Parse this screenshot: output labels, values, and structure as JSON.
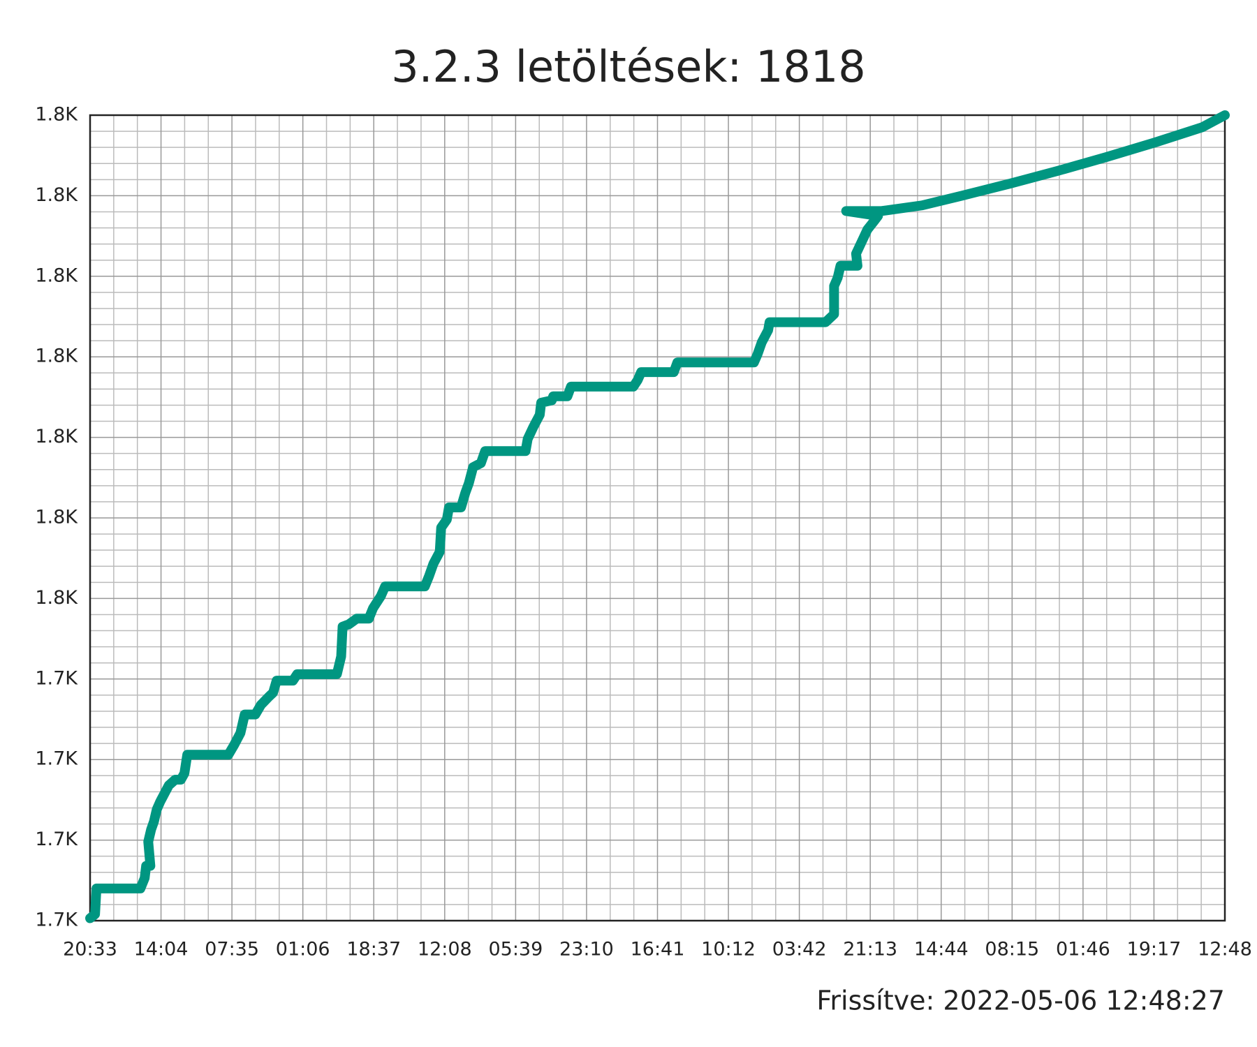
{
  "chart_data": {
    "type": "line",
    "title": "3.2.3 letöltések: 1818",
    "annotation": "Frissítve: 2022-05-06 12:48:27",
    "xlim": [
      0,
      16
    ],
    "xticks": [
      {
        "value": 0,
        "label": "20:33"
      },
      {
        "value": 1,
        "label": "14:04"
      },
      {
        "value": 2,
        "label": "07:35"
      },
      {
        "value": 3,
        "label": "01:06"
      },
      {
        "value": 4,
        "label": "18:37"
      },
      {
        "value": 5,
        "label": "12:08"
      },
      {
        "value": 6,
        "label": "05:39"
      },
      {
        "value": 7,
        "label": "23:10"
      },
      {
        "value": 8,
        "label": "16:41"
      },
      {
        "value": 9,
        "label": "10:12"
      },
      {
        "value": 10,
        "label": "03:42"
      },
      {
        "value": 11,
        "label": "21:13"
      },
      {
        "value": 12,
        "label": "14:44"
      },
      {
        "value": 13,
        "label": "08:15"
      },
      {
        "value": 14,
        "label": "01:46"
      },
      {
        "value": 15,
        "label": "19:17"
      },
      {
        "value": 16,
        "label": "12:48"
      }
    ],
    "ylim": [
      1718,
      1818
    ],
    "yticks": [
      {
        "value": 1718,
        "label": "1.7K"
      },
      {
        "value": 1728,
        "label": "1.7K"
      },
      {
        "value": 1738,
        "label": "1.7K"
      },
      {
        "value": 1748,
        "label": "1.7K"
      },
      {
        "value": 1758,
        "label": "1.8K"
      },
      {
        "value": 1768,
        "label": "1.8K"
      },
      {
        "value": 1778,
        "label": "1.8K"
      },
      {
        "value": 1788,
        "label": "1.8K"
      },
      {
        "value": 1798,
        "label": "1.8K"
      },
      {
        "value": 1808,
        "label": "1.8K"
      },
      {
        "value": 1818,
        "label": "1.8K"
      }
    ],
    "grid": true,
    "series": [
      {
        "color": "#009681",
        "x": [
          0,
          0.07,
          0.09,
          0.71,
          0.77,
          0.79,
          0.85,
          0.82,
          0.86,
          0.9,
          0.94,
          0.99,
          1.05,
          1.11,
          1.2,
          1.28,
          1.33,
          1.37,
          1.95,
          2.03,
          2.12,
          2.18,
          2.33,
          2.41,
          2.52,
          2.58,
          2.63,
          2.86,
          2.92,
          3.48,
          3.54,
          3.56,
          3.65,
          3.76,
          3.93,
          3.99,
          4.1,
          4.16,
          4.72,
          4.78,
          4.84,
          4.93,
          4.95,
          5.03,
          5.06,
          5.23,
          5.29,
          5.34,
          5.4,
          5.51,
          5.57,
          6.14,
          6.17,
          6.25,
          6.34,
          6.36,
          6.51,
          6.53,
          6.73,
          6.78,
          7.66,
          7.72,
          7.77,
          8.23,
          8.28,
          9.36,
          9.41,
          9.47,
          9.56,
          9.58,
          10.37,
          10.49,
          10.49,
          10.54,
          10.58,
          10.82,
          10.8,
          10.88,
          10.96,
          11.05,
          11.11,
          10.66,
          11.16,
          11.73,
          12.29,
          12.97,
          13.65,
          14.33,
          15.01,
          15.68,
          16
        ],
        "values": [
          1718.3,
          1718.8,
          1722,
          1722,
          1723.3,
          1724.8,
          1724.8,
          1727.8,
          1729.3,
          1730.3,
          1731.8,
          1732.8,
          1733.8,
          1734.8,
          1735.5,
          1735.5,
          1736.3,
          1738.6,
          1738.6,
          1739.8,
          1741.3,
          1743.6,
          1743.6,
          1744.8,
          1745.8,
          1746.3,
          1747.8,
          1747.8,
          1748.6,
          1748.6,
          1750.8,
          1754.5,
          1754.8,
          1755.5,
          1755.5,
          1756.8,
          1758.3,
          1759.5,
          1759.5,
          1760.8,
          1762.3,
          1763.8,
          1766.8,
          1767.8,
          1769.3,
          1769.3,
          1771.1,
          1772.3,
          1774.3,
          1774.8,
          1776.3,
          1776.3,
          1777.8,
          1779.3,
          1780.8,
          1782.3,
          1782.6,
          1783.1,
          1783.1,
          1784.3,
          1784.3,
          1785.1,
          1786.1,
          1786.1,
          1787.3,
          1787.3,
          1788.3,
          1789.8,
          1791.3,
          1792.3,
          1792.3,
          1793.3,
          1796.8,
          1797.8,
          1799.3,
          1799.3,
          1800.8,
          1802.3,
          1803.8,
          1804.8,
          1805.5,
          1806.1,
          1806.1,
          1806.8,
          1808,
          1809.5,
          1811.1,
          1812.8,
          1814.6,
          1816.5,
          1818
        ]
      }
    ]
  }
}
